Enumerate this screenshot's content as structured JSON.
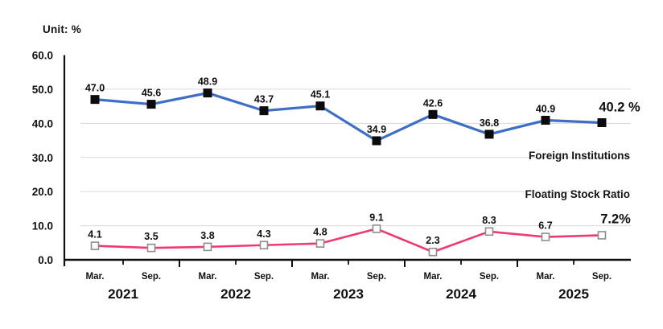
{
  "chart": {
    "unit_label": "Unit: %",
    "legend": {
      "series1": "Foreign Institutions",
      "series2": "Floating Stock Ratio"
    }
  },
  "chart_data": {
    "type": "line",
    "x_months": [
      "Mar.",
      "Sep.",
      "Mar.",
      "Sep.",
      "Mar.",
      "Sep.",
      "Mar.",
      "Sep.",
      "Mar.",
      "Sep."
    ],
    "x_years": [
      "2021",
      "2022",
      "2023",
      "2024",
      "2025"
    ],
    "series": [
      {
        "name": "Foreign Institutions",
        "values": [
          47.0,
          45.6,
          48.9,
          43.7,
          45.1,
          34.9,
          42.6,
          36.8,
          40.9,
          40.2
        ],
        "point_labels": [
          "47.0",
          "45.6",
          "48.9",
          "43.7",
          "45.1",
          "34.9",
          "42.6",
          "36.8",
          "40.9",
          "40.2 %"
        ],
        "color": "#3E6EC5",
        "marker": "filled-black-square"
      },
      {
        "name": "Floating Stock Ratio",
        "values": [
          4.1,
          3.5,
          3.8,
          4.3,
          4.8,
          9.1,
          2.3,
          8.3,
          6.7,
          7.2
        ],
        "point_labels": [
          "4.1",
          "3.5",
          "3.8",
          "4.3",
          "4.8",
          "9.1",
          "2.3",
          "8.3",
          "6.7",
          "7.2%"
        ],
        "color": "#EE3A6E",
        "marker": "open-white-square"
      }
    ],
    "ylim": [
      0,
      60
    ],
    "y_ticks": [
      "60.0",
      "50.0",
      "40.0",
      "30.0",
      "20.0",
      "10.0",
      "0.0"
    ],
    "y_tick_values": [
      60,
      50,
      40,
      30,
      20,
      10,
      0
    ],
    "grid": "horizontal-light-gray",
    "legend_position": "inside-right",
    "unit": "%"
  },
  "colors": {
    "axis": "#0f0f0f",
    "grid": "#d9d9d9",
    "text": "#0f0f0f",
    "series1_line": "#3E6EC5",
    "series1_marker": "#0b0b0b",
    "series2_line": "#EE3A6E",
    "series2_marker_fill": "#fdfdfd",
    "series2_marker_stroke": "#8e8e8e"
  }
}
